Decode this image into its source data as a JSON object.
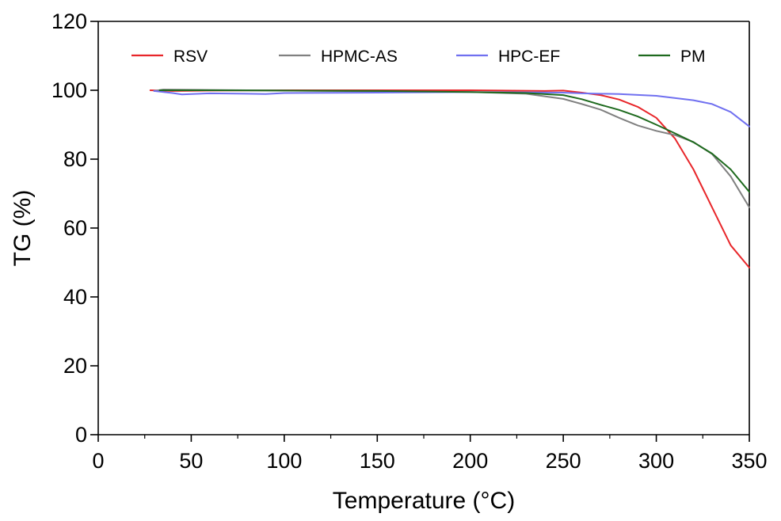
{
  "chart_data": {
    "type": "line",
    "title": "",
    "xlabel": "Temperature (°C)",
    "ylabel": "TG (%)",
    "xlim": [
      0,
      350
    ],
    "ylim": [
      0,
      120
    ],
    "xticks": [
      0,
      50,
      100,
      150,
      200,
      250,
      300,
      350
    ],
    "yticks": [
      0,
      20,
      40,
      60,
      80,
      100,
      120
    ],
    "xtick_labels": [
      "0",
      "50",
      "100",
      "150",
      "200",
      "250",
      "300",
      "350"
    ],
    "ytick_labels": [
      "0",
      "20",
      "40",
      "60",
      "80",
      "100",
      "120"
    ],
    "grid": false,
    "legend_position": "top",
    "series": [
      {
        "name": "RSV",
        "color": "#e8262a",
        "points": [
          [
            28,
            100
          ],
          [
            40,
            99.8
          ],
          [
            60,
            99.9
          ],
          [
            100,
            100
          ],
          [
            150,
            100
          ],
          [
            200,
            100
          ],
          [
            240,
            99.8
          ],
          [
            250,
            99.9
          ],
          [
            260,
            99.3
          ],
          [
            270,
            98.6
          ],
          [
            280,
            97.3
          ],
          [
            290,
            95.2
          ],
          [
            300,
            92
          ],
          [
            310,
            86
          ],
          [
            320,
            77
          ],
          [
            330,
            66
          ],
          [
            340,
            55
          ],
          [
            350,
            48.5
          ]
        ]
      },
      {
        "name": "HPMC-AS",
        "color": "#808080",
        "points": [
          [
            30,
            99.8
          ],
          [
            35,
            100.2
          ],
          [
            60,
            100.1
          ],
          [
            100,
            99.9
          ],
          [
            150,
            99.7
          ],
          [
            200,
            99.5
          ],
          [
            230,
            99
          ],
          [
            250,
            97.5
          ],
          [
            260,
            96
          ],
          [
            270,
            94.4
          ],
          [
            280,
            92
          ],
          [
            290,
            89.8
          ],
          [
            300,
            88.2
          ],
          [
            310,
            87
          ],
          [
            320,
            85
          ],
          [
            330,
            81.5
          ],
          [
            340,
            75
          ],
          [
            350,
            66
          ]
        ]
      },
      {
        "name": "HPC-EF",
        "color": "#7070f0",
        "points": [
          [
            30,
            99.8
          ],
          [
            40,
            99.2
          ],
          [
            45,
            98.8
          ],
          [
            60,
            99.1
          ],
          [
            80,
            99
          ],
          [
            90,
            98.9
          ],
          [
            100,
            99.2
          ],
          [
            150,
            99.3
          ],
          [
            200,
            99.5
          ],
          [
            250,
            99.3
          ],
          [
            260,
            99.1
          ],
          [
            280,
            98.9
          ],
          [
            300,
            98.4
          ],
          [
            320,
            97.1
          ],
          [
            330,
            96
          ],
          [
            340,
            93.7
          ],
          [
            350,
            89.5
          ]
        ]
      },
      {
        "name": "PM",
        "color": "#1e6a1e",
        "points": [
          [
            33,
            100
          ],
          [
            60,
            100
          ],
          [
            100,
            99.9
          ],
          [
            150,
            99.8
          ],
          [
            200,
            99.5
          ],
          [
            230,
            99.2
          ],
          [
            250,
            98.6
          ],
          [
            260,
            97.4
          ],
          [
            270,
            95.8
          ],
          [
            280,
            94.3
          ],
          [
            290,
            92.4
          ],
          [
            300,
            90
          ],
          [
            310,
            87.5
          ],
          [
            320,
            84.9
          ],
          [
            330,
            81.6
          ],
          [
            340,
            77
          ],
          [
            350,
            70.5
          ]
        ]
      }
    ]
  }
}
